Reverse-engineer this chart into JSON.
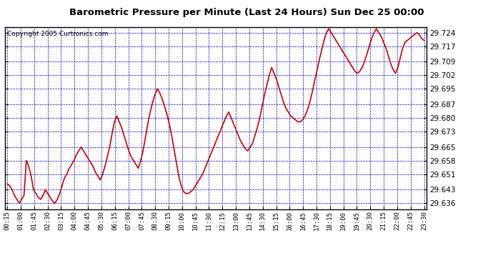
{
  "title": "Barometric Pressure per Minute (Last 24 Hours) Sun Dec 25 00:00",
  "copyright": "Copyright 2005 Curtronics.com",
  "background_color": "#ffffff",
  "plot_bg_color": "#ffffff",
  "line_color": "#cc0000",
  "grid_color": "#0000cc",
  "yticks": [
    29.636,
    29.643,
    29.651,
    29.658,
    29.665,
    29.673,
    29.68,
    29.687,
    29.695,
    29.702,
    29.709,
    29.717,
    29.724
  ],
  "ylim": [
    29.633,
    29.727
  ],
  "xtick_labels": [
    "00:15",
    "01:00",
    "01:45",
    "02:30",
    "03:15",
    "04:00",
    "04:45",
    "05:30",
    "06:15",
    "07:00",
    "07:45",
    "08:30",
    "09:15",
    "10:00",
    "10:45",
    "11:30",
    "12:15",
    "13:00",
    "13:45",
    "14:30",
    "15:15",
    "16:00",
    "16:45",
    "17:30",
    "18:15",
    "19:00",
    "19:45",
    "20:30",
    "21:15",
    "22:00",
    "22:45",
    "23:30"
  ],
  "pressure_data": [
    29.646,
    29.645,
    29.643,
    29.64,
    29.638,
    29.636,
    29.638,
    29.64,
    29.658,
    29.655,
    29.65,
    29.643,
    29.641,
    29.639,
    29.638,
    29.64,
    29.643,
    29.641,
    29.639,
    29.637,
    29.636,
    29.638,
    29.641,
    29.645,
    29.649,
    29.651,
    29.654,
    29.656,
    29.658,
    29.661,
    29.663,
    29.665,
    29.663,
    29.661,
    29.659,
    29.657,
    29.655,
    29.652,
    29.65,
    29.648,
    29.651,
    29.655,
    29.66,
    29.665,
    29.672,
    29.678,
    29.681,
    29.678,
    29.675,
    29.671,
    29.667,
    29.663,
    29.66,
    29.658,
    29.656,
    29.654,
    29.658,
    29.663,
    29.67,
    29.677,
    29.683,
    29.688,
    29.692,
    29.695,
    29.693,
    29.69,
    29.686,
    29.682,
    29.677,
    29.671,
    29.664,
    29.657,
    29.65,
    29.645,
    29.642,
    29.641,
    29.641,
    29.642,
    29.643,
    29.645,
    29.647,
    29.649,
    29.651,
    29.654,
    29.657,
    29.66,
    29.663,
    29.666,
    29.669,
    29.672,
    29.675,
    29.678,
    29.681,
    29.683,
    29.68,
    29.677,
    29.674,
    29.671,
    29.668,
    29.666,
    29.664,
    29.663,
    29.665,
    29.667,
    29.671,
    29.675,
    29.68,
    29.686,
    29.692,
    29.697,
    29.702,
    29.706,
    29.703,
    29.7,
    29.696,
    29.692,
    29.688,
    29.685,
    29.683,
    29.681,
    29.68,
    29.679,
    29.678,
    29.678,
    29.679,
    29.681,
    29.684,
    29.688,
    29.693,
    29.699,
    29.704,
    29.71,
    29.715,
    29.72,
    29.724,
    29.726,
    29.724,
    29.722,
    29.72,
    29.718,
    29.716,
    29.714,
    29.712,
    29.71,
    29.708,
    29.706,
    29.704,
    29.703,
    29.704,
    29.706,
    29.709,
    29.713,
    29.717,
    29.721,
    29.724,
    29.726,
    29.724,
    29.722,
    29.719,
    29.716,
    29.712,
    29.708,
    29.705,
    29.703,
    29.706,
    29.711,
    29.716,
    29.719,
    29.72,
    29.721,
    29.722,
    29.723,
    29.724,
    29.723,
    29.721,
    29.72
  ]
}
